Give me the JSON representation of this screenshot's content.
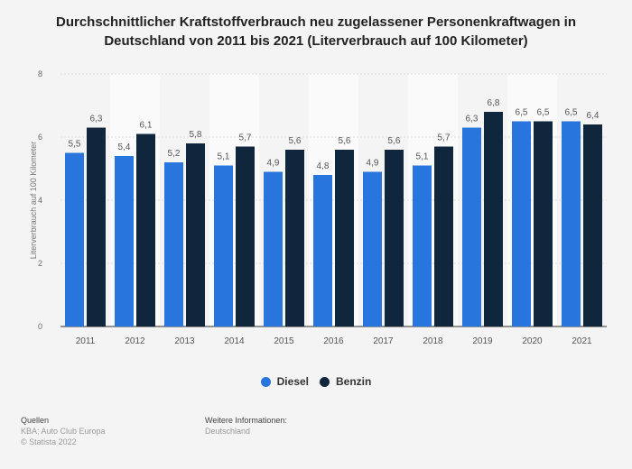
{
  "chart_data": {
    "type": "bar",
    "title": "Durchschnittlicher Kraftstoffverbrauch neu zugelassener Personenkraftwagen in Deutschland von 2011 bis 2021 (Literverbrauch auf 100 Kilometer)",
    "title_lines": [
      "Durchschnittlicher Kraftstoffverbrauch neu zugelassener Personenkraftwagen in",
      "Deutschland von 2011 bis 2021 (Literverbrauch auf 100 Kilometer)"
    ],
    "xlabel": "",
    "ylabel": "Literverbrauch auf 100 Kilometer",
    "ylim": [
      0,
      8
    ],
    "yticks": [
      0,
      2,
      4,
      6,
      8
    ],
    "grid": true,
    "legend_position": "bottom-center",
    "categories": [
      "2011",
      "2012",
      "2013",
      "2014",
      "2015",
      "2016",
      "2017",
      "2018",
      "2019",
      "2020",
      "2021"
    ],
    "series": [
      {
        "name": "Diesel",
        "color": "#2876dd",
        "values": [
          5.5,
          5.4,
          5.2,
          5.1,
          4.9,
          4.8,
          4.9,
          5.1,
          6.3,
          6.5,
          6.5
        ],
        "labels": [
          "5,5",
          "5,4",
          "5,2",
          "5,1",
          "4,9",
          "4,8",
          "4,9",
          "5,1",
          "6,3",
          "6,5",
          "6,5"
        ]
      },
      {
        "name": "Benzin",
        "color": "#10263d",
        "values": [
          6.3,
          6.1,
          5.8,
          5.7,
          5.6,
          5.6,
          5.6,
          5.7,
          6.8,
          6.5,
          6.4
        ],
        "labels": [
          "6,3",
          "6,1",
          "5,8",
          "5,7",
          "5,6",
          "5,6",
          "5,6",
          "5,7",
          "6,8",
          "6,5",
          "6,4"
        ]
      }
    ]
  },
  "footer": {
    "sources_heading": "Quellen",
    "sources": "KBA; Auto Club Europa",
    "copyright": "© Statista 2022",
    "info_heading": "Weitere Informationen:",
    "info": "Deutschland"
  }
}
